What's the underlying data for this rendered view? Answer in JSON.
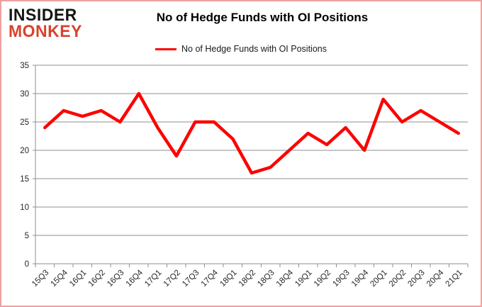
{
  "brand": {
    "line1": "INSIDER",
    "line2": "MONKEY",
    "accent_color": "#d8432d"
  },
  "header": {
    "title": "No of Hedge Funds with OI Positions"
  },
  "legend": {
    "label": "No of Hedge Funds with OI Positions",
    "color": "#fe0000"
  },
  "chart_data": {
    "type": "line",
    "title": "No of Hedge Funds with OI Positions",
    "categories": [
      "15Q3",
      "15Q4",
      "16Q1",
      "16Q2",
      "16Q3",
      "16Q4",
      "17Q1",
      "17Q2",
      "17Q3",
      "17Q4",
      "18Q1",
      "18Q2",
      "18Q3",
      "18Q4",
      "19Q1",
      "19Q2",
      "19Q3",
      "19Q4",
      "20Q1",
      "20Q2",
      "20Q3",
      "20Q4",
      "21Q1"
    ],
    "series": [
      {
        "name": "No of Hedge Funds with OI Positions",
        "color": "#fe0000",
        "values": [
          24,
          27,
          26,
          27,
          25,
          30,
          24,
          19,
          25,
          25,
          22,
          16,
          17,
          20,
          23,
          21,
          24,
          20,
          29,
          25,
          27,
          25,
          23
        ]
      }
    ],
    "xlabel": "",
    "ylabel": "",
    "ylim": [
      0,
      35
    ],
    "yticks": [
      0,
      5,
      10,
      15,
      20,
      25,
      30,
      35
    ],
    "grid": true,
    "legend_position": "top",
    "grid_color": "#8f8f8f",
    "tick_label_color": "#262626"
  }
}
